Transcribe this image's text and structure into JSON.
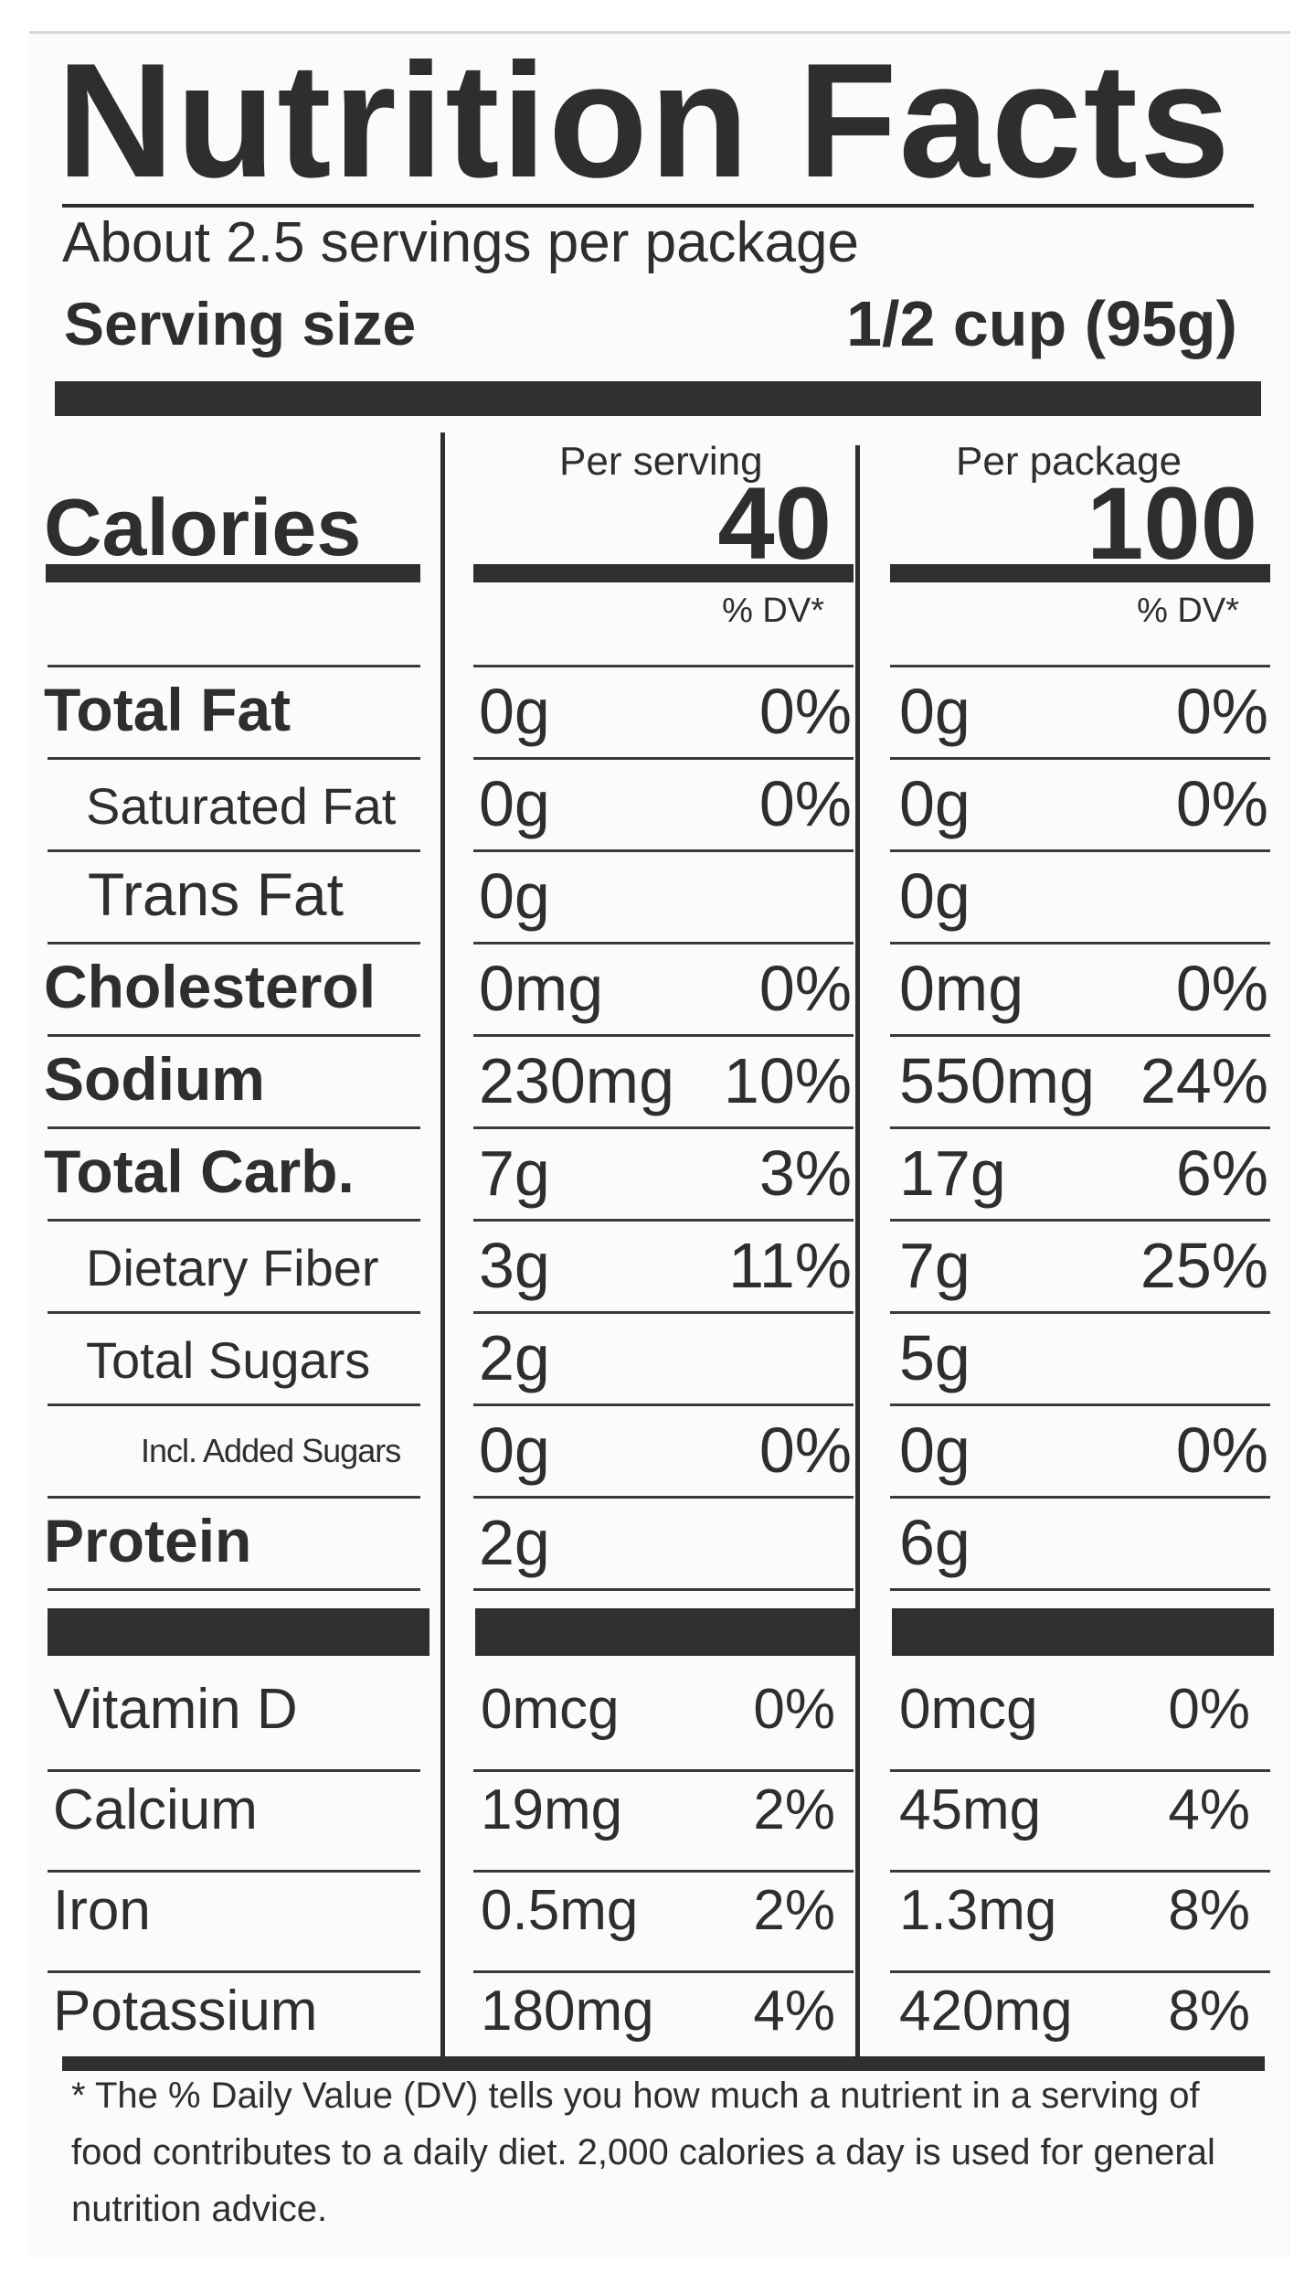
{
  "title": "Nutrition Facts",
  "servings_per_package": "About 2.5 servings per package",
  "serving_size_label": "Serving size",
  "serving_size_value": "1/2 cup (95g)",
  "calories_label": "Calories",
  "columns": [
    {
      "header": "Per serving",
      "calories": "40",
      "dv_header": "% DV*"
    },
    {
      "header": "Per package",
      "calories": "100",
      "dv_header": "% DV*"
    }
  ],
  "nutrients": [
    {
      "name": "Total Fat",
      "style": "bold",
      "serving_amount": "0g",
      "serving_dv": "0%",
      "package_amount": "0g",
      "package_dv": "0%"
    },
    {
      "name": "Saturated Fat",
      "style": "sub",
      "serving_amount": "0g",
      "serving_dv": "0%",
      "package_amount": "0g",
      "package_dv": "0%"
    },
    {
      "name": "Trans Fat",
      "style": "sub-large",
      "serving_amount": "0g",
      "serving_dv": "",
      "package_amount": "0g",
      "package_dv": ""
    },
    {
      "name": "Cholesterol",
      "style": "bold",
      "serving_amount": "0mg",
      "serving_dv": "0%",
      "package_amount": "0mg",
      "package_dv": "0%"
    },
    {
      "name": "Sodium",
      "style": "bold",
      "serving_amount": "230mg",
      "serving_dv": "10%",
      "package_amount": "550mg",
      "package_dv": "24%"
    },
    {
      "name": "Total Carb.",
      "style": "bold",
      "serving_amount": "7g",
      "serving_dv": "3%",
      "package_amount": "17g",
      "package_dv": "6%"
    },
    {
      "name": "Dietary Fiber",
      "style": "sub",
      "serving_amount": "3g",
      "serving_dv": "11%",
      "package_amount": "7g",
      "package_dv": "25%"
    },
    {
      "name": "Total Sugars",
      "style": "sub",
      "serving_amount": "2g",
      "serving_dv": "",
      "package_amount": "5g",
      "package_dv": ""
    },
    {
      "name": "Incl. Added Sugars",
      "style": "tiny",
      "serving_amount": "0g",
      "serving_dv": "0%",
      "package_amount": "0g",
      "package_dv": "0%"
    },
    {
      "name": "Protein",
      "style": "bold",
      "serving_amount": "2g",
      "serving_dv": "",
      "package_amount": "6g",
      "package_dv": ""
    }
  ],
  "vitamins": [
    {
      "name": "Vitamin D",
      "serving_amount": "0mcg",
      "serving_dv": "0%",
      "package_amount": "0mcg",
      "package_dv": "0%"
    },
    {
      "name": "Calcium",
      "serving_amount": "19mg",
      "serving_dv": "2%",
      "package_amount": "45mg",
      "package_dv": "4%"
    },
    {
      "name": "Iron",
      "serving_amount": "0.5mg",
      "serving_dv": "2%",
      "package_amount": "1.3mg",
      "package_dv": "8%"
    },
    {
      "name": "Potassium",
      "serving_amount": "180mg",
      "serving_dv": "4%",
      "package_amount": "420mg",
      "package_dv": "8%"
    }
  ],
  "footnote": "* The % Daily Value (DV) tells you how much a nutrient in a serving of food contributes to a daily diet. 2,000 calories a day is used for general nutrition advice.",
  "colors": {
    "ink": "#2e2e2e",
    "background": "#fbfbfa"
  }
}
